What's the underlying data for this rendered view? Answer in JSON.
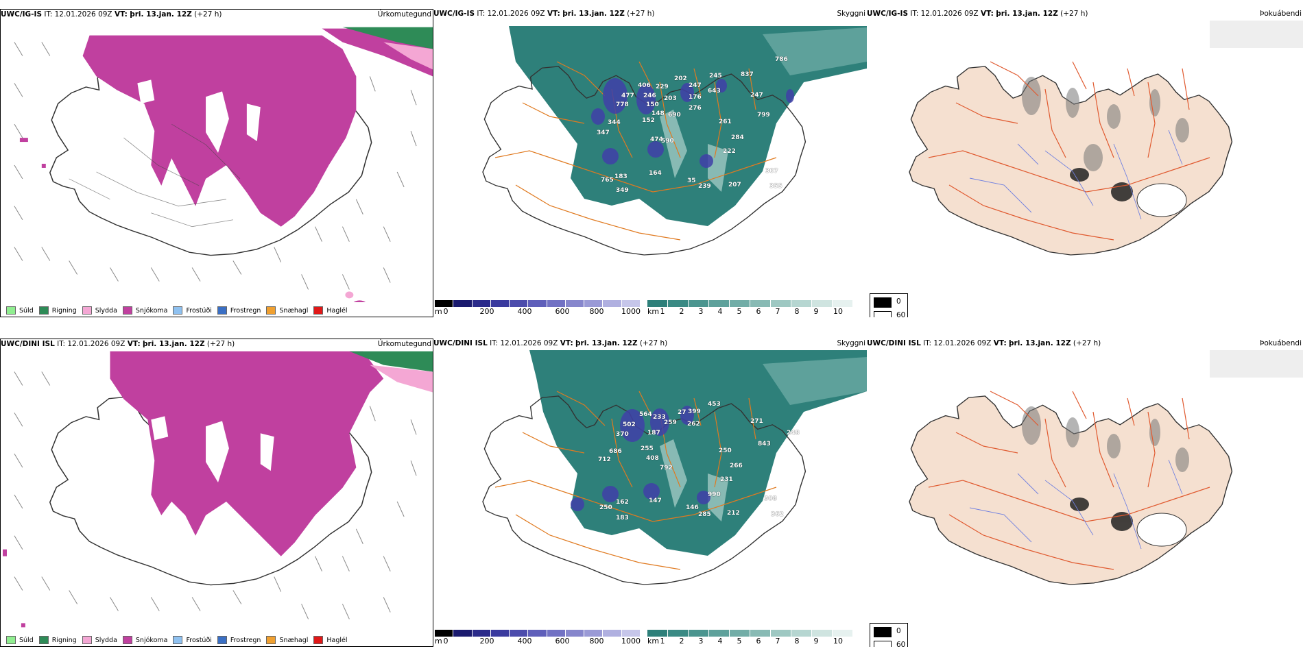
{
  "panels": [
    {
      "model": "UWC/IG-IS",
      "it_label": "IT:",
      "it": "12.01.2026 09Z",
      "vt_label": "VT:",
      "vt": "þri. 13.jan. 12Z",
      "lead": "(+27 h)",
      "variable": "Úrkomutegund"
    },
    {
      "model": "UWC/IG-IS",
      "it_label": "IT:",
      "it": "12.01.2026 09Z",
      "vt_label": "VT:",
      "vt": "þri. 13.jan. 12Z",
      "lead": "(+27 h)",
      "variable": "Skyggni"
    },
    {
      "model": "UWC/IG-IS",
      "it_label": "IT:",
      "it": "12.01.2026 09Z",
      "vt_label": "VT:",
      "vt": "þri. 13.jan. 12Z",
      "lead": "(+27 h)",
      "variable": "Þokuábendi"
    },
    {
      "model": "UWC/DINI ISL",
      "it_label": "IT:",
      "it": "12.01.2026 09Z",
      "vt_label": "VT:",
      "vt": "þri. 13.jan. 12Z",
      "lead": "(+27 h)",
      "variable": "Úrkomutegund"
    },
    {
      "model": "UWC/DINI ISL",
      "it_label": "IT:",
      "it": "12.01.2026 09Z",
      "vt_label": "VT:",
      "vt": "þri. 13.jan. 12Z",
      "lead": "(+27 h)",
      "variable": "Skyggni"
    },
    {
      "model": "UWC/DINI ISL",
      "it_label": "IT:",
      "it": "12.01.2026 09Z",
      "vt_label": "VT:",
      "vt": "þri. 13.jan. 12Z",
      "lead": "(+27 h)",
      "variable": "Þokuábendi"
    }
  ],
  "precip_legend": [
    {
      "label": "Súld",
      "color": "#90ee90"
    },
    {
      "label": "Rigning",
      "color": "#2e8b57"
    },
    {
      "label": "Slydda",
      "color": "#f4a7d4"
    },
    {
      "label": "Snjókoma",
      "color": "#c0409f"
    },
    {
      "label": "Frostúði",
      "color": "#8fc1f0"
    },
    {
      "label": "Frostregn",
      "color": "#3a6fc4"
    },
    {
      "label": "Snæhagl",
      "color": "#f0a030"
    },
    {
      "label": "Haglél",
      "color": "#e01818"
    }
  ],
  "cbar_m": {
    "unit": "m",
    "ticks": [
      "0",
      "200",
      "400",
      "600",
      "800",
      "1000"
    ],
    "colors": [
      "#000000",
      "#1a1a6e",
      "#2a2a8a",
      "#3a3a9e",
      "#4c4cac",
      "#5f5fba",
      "#7272c4",
      "#8686cc",
      "#9a9ad6",
      "#b0b0e0",
      "#c6c6ea"
    ]
  },
  "cbar_km": {
    "unit": "km",
    "ticks": [
      "1",
      "2",
      "3",
      "4",
      "5",
      "6",
      "7",
      "8",
      "9",
      "10"
    ],
    "colors": [
      "#2e807a",
      "#3a8a84",
      "#4b958f",
      "#5ea19b",
      "#72ada7",
      "#88bab4",
      "#9ec8c2",
      "#b6d6d1",
      "#cfe4e0",
      "#e6f1ef"
    ]
  },
  "fog_legend": [
    {
      "label": "0",
      "color": "#000000"
    },
    {
      "label": "60",
      "color": "#ffffff"
    }
  ],
  "labels_top": [
    {
      "t": "786",
      "x": 1130,
      "y": 82
    },
    {
      "t": "837",
      "x": 1080,
      "y": 104
    },
    {
      "t": "406",
      "x": 930,
      "y": 120
    },
    {
      "t": "229",
      "x": 956,
      "y": 122
    },
    {
      "t": "202",
      "x": 983,
      "y": 110
    },
    {
      "t": "245",
      "x": 1034,
      "y": 106
    },
    {
      "t": "247",
      "x": 1004,
      "y": 120
    },
    {
      "t": "643",
      "x": 1032,
      "y": 128
    },
    {
      "t": "477",
      "x": 906,
      "y": 135
    },
    {
      "t": "246",
      "x": 938,
      "y": 135
    },
    {
      "t": "203",
      "x": 968,
      "y": 139
    },
    {
      "t": "176",
      "x": 1004,
      "y": 137
    },
    {
      "t": "247",
      "x": 1094,
      "y": 134
    },
    {
      "t": "778",
      "x": 898,
      "y": 148
    },
    {
      "t": "150",
      "x": 942,
      "y": 148
    },
    {
      "t": "276",
      "x": 1004,
      "y": 153
    },
    {
      "t": "148",
      "x": 950,
      "y": 161
    },
    {
      "t": "690",
      "x": 974,
      "y": 163
    },
    {
      "t": "799",
      "x": 1104,
      "y": 163
    },
    {
      "t": "344",
      "x": 886,
      "y": 174
    },
    {
      "t": "152",
      "x": 936,
      "y": 171
    },
    {
      "t": "261",
      "x": 1048,
      "y": 173
    },
    {
      "t": "347",
      "x": 870,
      "y": 189
    },
    {
      "t": "474",
      "x": 948,
      "y": 199
    },
    {
      "t": "590",
      "x": 964,
      "y": 201
    },
    {
      "t": "284",
      "x": 1066,
      "y": 196
    },
    {
      "t": "222",
      "x": 1054,
      "y": 216
    },
    {
      "t": "307",
      "x": 1116,
      "y": 245
    },
    {
      "t": "183",
      "x": 896,
      "y": 253
    },
    {
      "t": "164",
      "x": 946,
      "y": 248
    },
    {
      "t": "765",
      "x": 876,
      "y": 258
    },
    {
      "t": "35",
      "x": 1002,
      "y": 259
    },
    {
      "t": "239",
      "x": 1018,
      "y": 267
    },
    {
      "t": "207",
      "x": 1062,
      "y": 265
    },
    {
      "t": "355",
      "x": 1122,
      "y": 267
    },
    {
      "t": "349",
      "x": 898,
      "y": 273
    }
  ],
  "labels_bottom": [
    {
      "t": "453",
      "x": 1032,
      "y": 585
    },
    {
      "t": "564",
      "x": 932,
      "y": 600
    },
    {
      "t": "233",
      "x": 952,
      "y": 604
    },
    {
      "t": "27",
      "x": 988,
      "y": 597
    },
    {
      "t": "399",
      "x": 1003,
      "y": 596
    },
    {
      "t": "271",
      "x": 1094,
      "y": 610
    },
    {
      "t": "502",
      "x": 908,
      "y": 615
    },
    {
      "t": "259",
      "x": 968,
      "y": 612
    },
    {
      "t": "262",
      "x": 1002,
      "y": 614
    },
    {
      "t": "370",
      "x": 898,
      "y": 629
    },
    {
      "t": "187",
      "x": 944,
      "y": 627
    },
    {
      "t": "248",
      "x": 1147,
      "y": 627
    },
    {
      "t": "843",
      "x": 1105,
      "y": 643
    },
    {
      "t": "686",
      "x": 888,
      "y": 654
    },
    {
      "t": "255",
      "x": 934,
      "y": 650
    },
    {
      "t": "250",
      "x": 1048,
      "y": 653
    },
    {
      "t": "712",
      "x": 872,
      "y": 666
    },
    {
      "t": "408",
      "x": 942,
      "y": 664
    },
    {
      "t": "792",
      "x": 962,
      "y": 678
    },
    {
      "t": "266",
      "x": 1064,
      "y": 675
    },
    {
      "t": "231",
      "x": 1050,
      "y": 695
    },
    {
      "t": "990",
      "x": 1032,
      "y": 717
    },
    {
      "t": "308",
      "x": 1114,
      "y": 723
    },
    {
      "t": "162",
      "x": 898,
      "y": 728
    },
    {
      "t": "147",
      "x": 946,
      "y": 726
    },
    {
      "t": "250",
      "x": 874,
      "y": 736
    },
    {
      "t": "146",
      "x": 1000,
      "y": 736
    },
    {
      "t": "285",
      "x": 1018,
      "y": 746
    },
    {
      "t": "212",
      "x": 1060,
      "y": 744
    },
    {
      "t": "362",
      "x": 1124,
      "y": 746
    },
    {
      "t": "183",
      "x": 898,
      "y": 751
    }
  ]
}
